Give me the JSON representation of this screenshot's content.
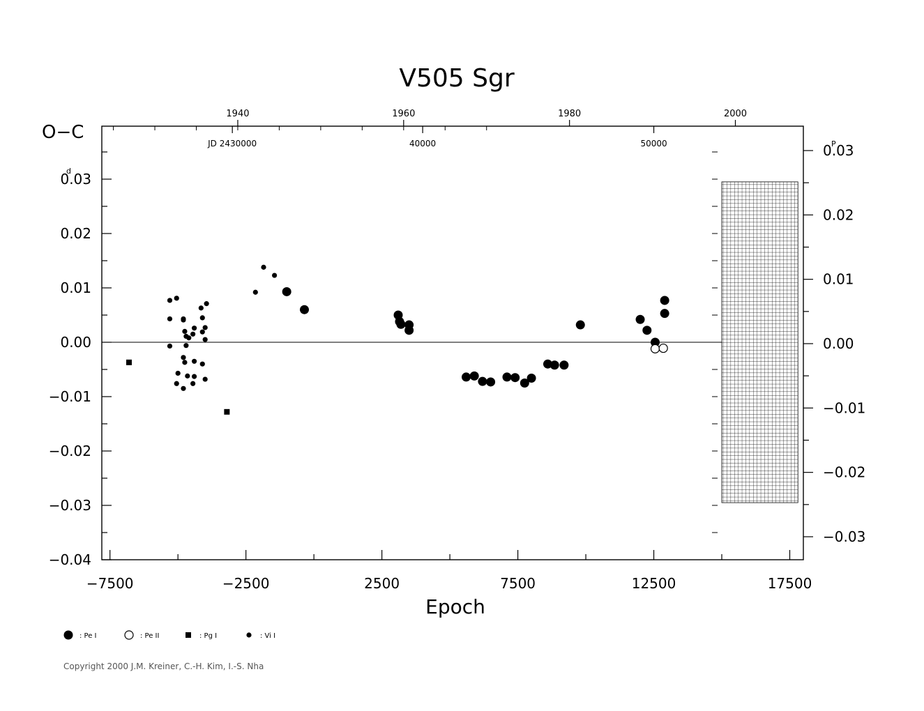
{
  "chart_data": {
    "type": "scatter",
    "title": "V505  Sgr",
    "xlabel": "Epoch",
    "ylabel": "O−C",
    "ylabel_unit_left": "d",
    "ylabel_unit_right": "P",
    "xlim": [
      -7800,
      18000
    ],
    "ylim": [
      -0.04,
      0.04
    ],
    "grid": false,
    "zero_line": true,
    "x_ticks": [
      {
        "value": -7500,
        "label": "−7500"
      },
      {
        "value": -2500,
        "label": "−2500"
      },
      {
        "value": 2500,
        "label": "2500"
      },
      {
        "value": 7500,
        "label": "7500"
      },
      {
        "value": 12500,
        "label": "12500"
      },
      {
        "value": 17500,
        "label": "17500"
      }
    ],
    "y_ticks_left": [
      {
        "value": 0.03,
        "label": "0.03"
      },
      {
        "value": 0.02,
        "label": "0.02"
      },
      {
        "value": 0.01,
        "label": "0.01"
      },
      {
        "value": 0.0,
        "label": "0.00"
      },
      {
        "value": -0.01,
        "label": "−0.01"
      },
      {
        "value": -0.02,
        "label": "−0.02"
      },
      {
        "value": -0.03,
        "label": "−0.03"
      },
      {
        "value": -0.04,
        "label": "−0.04"
      }
    ],
    "y_ticks_right": [
      {
        "value": 0.03,
        "label": "0.03"
      },
      {
        "value": 0.02,
        "label": "0.02"
      },
      {
        "value": 0.01,
        "label": "0.01"
      },
      {
        "value": 0.0,
        "label": "0.00"
      },
      {
        "value": -0.01,
        "label": "−0.01"
      },
      {
        "value": -0.02,
        "label": "−0.02"
      },
      {
        "value": -0.03,
        "label": "−0.03"
      }
    ],
    "year_ticks": [
      {
        "epoch": -2800,
        "label": "1940"
      },
      {
        "epoch": 3300,
        "label": "1960"
      },
      {
        "epoch": 9400,
        "label": "1980"
      },
      {
        "epoch": 15500,
        "label": "2000"
      }
    ],
    "jd_ticks": [
      {
        "epoch": -3000,
        "label": "JD  2430000"
      },
      {
        "epoch": 4000,
        "label": "40000"
      },
      {
        "epoch": 12500,
        "label": "50000"
      }
    ],
    "hatched_region": {
      "x": [
        15000,
        17800
      ],
      "y": [
        -0.0295,
        0.0295
      ]
    },
    "series": [
      {
        "name": ": Pe  I",
        "marker": "filled-circle-large",
        "points": [
          [
            -1000,
            0.0093
          ],
          [
            -350,
            0.006
          ],
          [
            3100,
            0.005
          ],
          [
            3150,
            0.0038
          ],
          [
            3200,
            0.0033
          ],
          [
            3500,
            0.0022
          ],
          [
            3500,
            0.0032
          ],
          [
            5600,
            -0.0064
          ],
          [
            5900,
            -0.0062
          ],
          [
            6200,
            -0.0072
          ],
          [
            6500,
            -0.0073
          ],
          [
            7100,
            -0.0064
          ],
          [
            7400,
            -0.0065
          ],
          [
            7750,
            -0.0075
          ],
          [
            8000,
            -0.0066
          ],
          [
            8600,
            -0.004
          ],
          [
            8850,
            -0.0042
          ],
          [
            9200,
            -0.0042
          ],
          [
            9800,
            0.0032
          ],
          [
            12000,
            0.0042
          ],
          [
            12250,
            0.0022
          ],
          [
            12550,
            0.0
          ],
          [
            12900,
            0.0077
          ],
          [
            12900,
            0.0053
          ]
        ]
      },
      {
        "name": ": Pe  II",
        "marker": "open-circle",
        "points": [
          [
            12550,
            -0.0012
          ],
          [
            12850,
            -0.0011
          ]
        ]
      },
      {
        "name": ": Pg  I",
        "marker": "filled-square",
        "points": [
          [
            -6800,
            -0.0037
          ],
          [
            -3200,
            -0.0128
          ]
        ]
      },
      {
        "name": ": Vi  I",
        "marker": "filled-circle-small",
        "points": [
          [
            -5300,
            0.0077
          ],
          [
            -5050,
            0.0081
          ],
          [
            -5300,
            0.0043
          ],
          [
            -4800,
            0.0043
          ],
          [
            -4800,
            0.0041
          ],
          [
            -4400,
            0.0026
          ],
          [
            -4150,
            0.0063
          ],
          [
            -3950,
            0.0071
          ],
          [
            -4100,
            0.0045
          ],
          [
            -4000,
            0.0027
          ],
          [
            -4750,
            0.002
          ],
          [
            -4700,
            0.0011
          ],
          [
            -4450,
            0.0015
          ],
          [
            -4100,
            0.0019
          ],
          [
            -4000,
            0.0005
          ],
          [
            -4600,
            0.0008
          ],
          [
            -5300,
            -0.0007
          ],
          [
            -4700,
            -0.0006
          ],
          [
            -4800,
            -0.0028
          ],
          [
            -4750,
            -0.0037
          ],
          [
            -4400,
            -0.0035
          ],
          [
            -4100,
            -0.004
          ],
          [
            -5000,
            -0.0057
          ],
          [
            -4650,
            -0.0062
          ],
          [
            -4400,
            -0.0063
          ],
          [
            -4000,
            -0.0068
          ],
          [
            -5050,
            -0.0076
          ],
          [
            -4800,
            -0.0085
          ],
          [
            -4450,
            -0.0076
          ],
          [
            -2150,
            0.0092
          ],
          [
            -1850,
            0.0138
          ],
          [
            -1450,
            0.0123
          ]
        ]
      }
    ],
    "legend": {
      "placement": "bottom-left",
      "layout": "horizontal"
    },
    "copyright": "Copyright 2000 J.M. Kreiner, C.-H. Kim, I.-S. Nha"
  }
}
